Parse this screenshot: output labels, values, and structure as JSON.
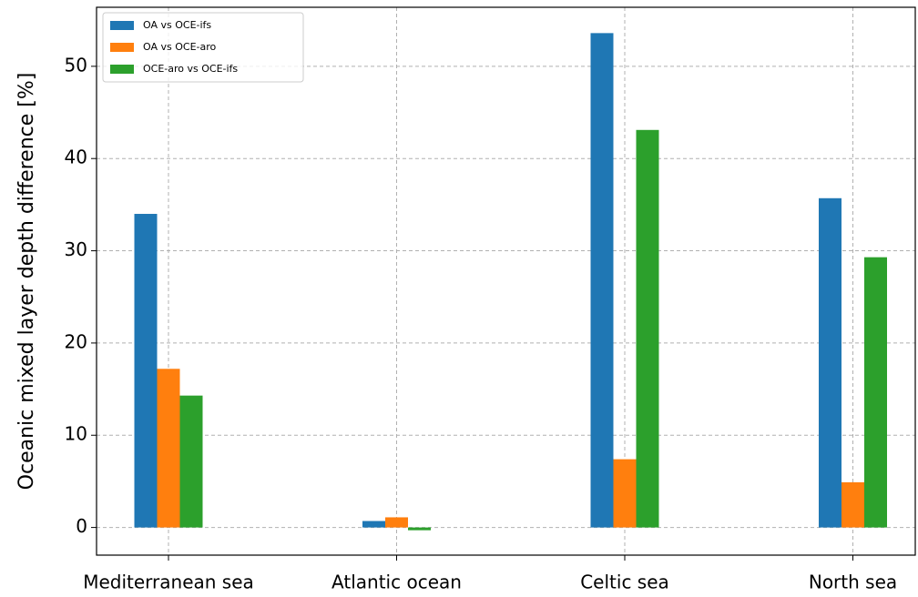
{
  "chart_data": {
    "type": "bar",
    "ylabel": "Oceanic mixed layer depth difference [%]",
    "categories": [
      "Mediterranean sea",
      "Atlantic ocean",
      "Celtic sea",
      "North sea"
    ],
    "series": [
      {
        "name": "OA vs OCE-ifs",
        "color": "#1f77b4",
        "values": [
          34.0,
          0.7,
          53.6,
          35.7
        ]
      },
      {
        "name": "OA vs OCE-aro",
        "color": "#ff7f0e",
        "values": [
          17.2,
          1.1,
          7.4,
          4.9
        ]
      },
      {
        "name": "OCE-aro vs OCE-ifs",
        "color": "#2ca02c",
        "values": [
          14.3,
          -0.3,
          43.1,
          29.3
        ]
      }
    ],
    "ylim": [
      -3,
      56.4
    ],
    "yticks": [
      0,
      10,
      20,
      30,
      40,
      50
    ],
    "grid": true,
    "legend": "upper-left"
  }
}
